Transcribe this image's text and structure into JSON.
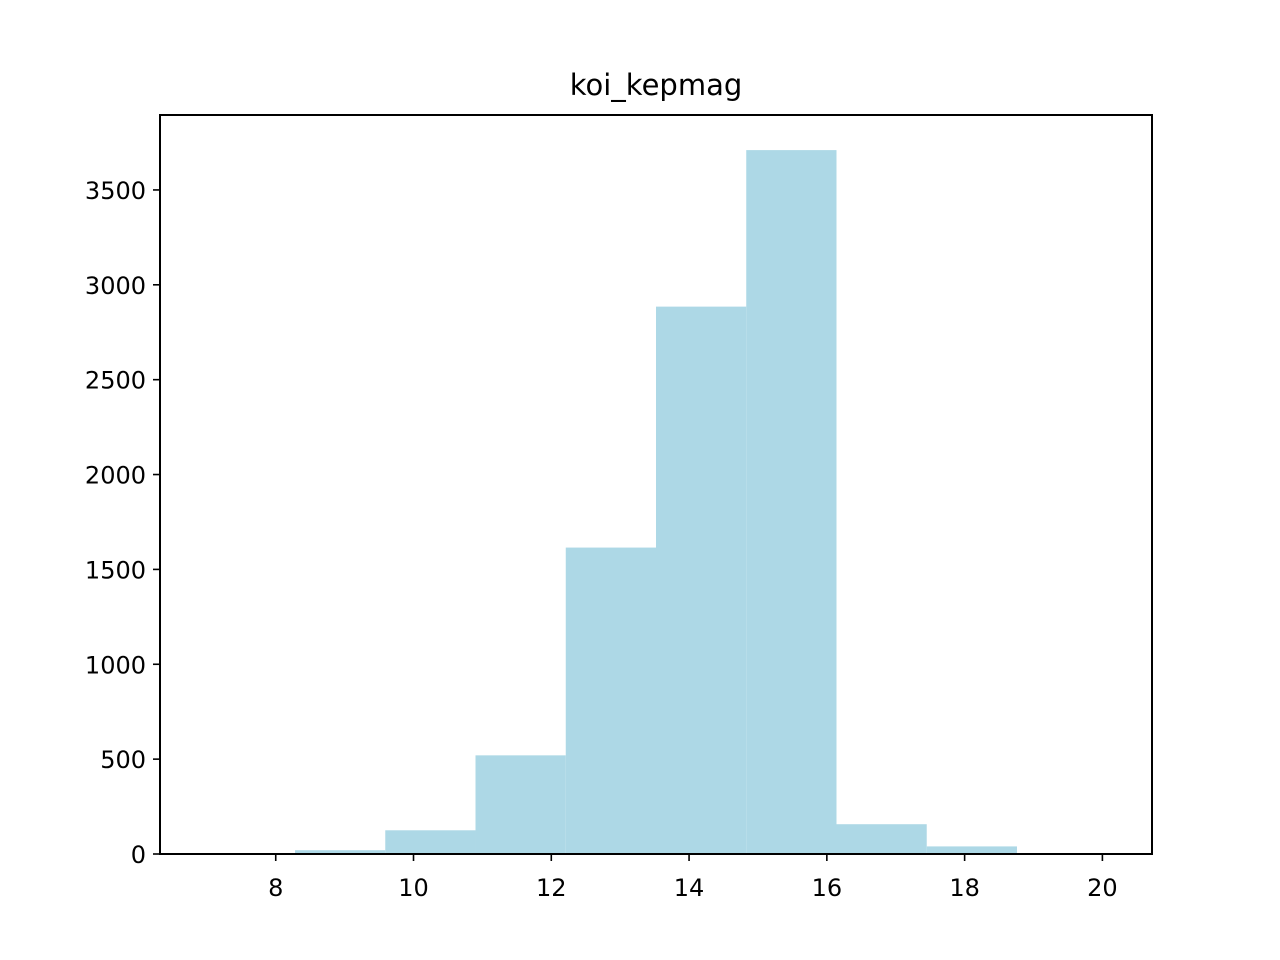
{
  "chart_data": {
    "type": "bar",
    "title": "koi_kepmag",
    "xlabel": "",
    "ylabel": "",
    "bins": [
      {
        "x0": 6.97,
        "x1": 8.28,
        "count": 4
      },
      {
        "x0": 8.28,
        "x1": 9.59,
        "count": 20
      },
      {
        "x0": 9.59,
        "x1": 10.9,
        "count": 125
      },
      {
        "x0": 10.9,
        "x1": 12.21,
        "count": 520
      },
      {
        "x0": 12.21,
        "x1": 13.52,
        "count": 1615
      },
      {
        "x0": 13.52,
        "x1": 14.83,
        "count": 2885
      },
      {
        "x0": 14.83,
        "x1": 16.14,
        "count": 3710
      },
      {
        "x0": 16.14,
        "x1": 17.45,
        "count": 157
      },
      {
        "x0": 17.45,
        "x1": 18.76,
        "count": 40
      },
      {
        "x0": 18.76,
        "x1": 20.07,
        "count": 2
      }
    ],
    "xlim": [
      6.32,
      20.72
    ],
    "ylim": [
      0,
      3895
    ],
    "xticks": [
      "8",
      "10",
      "12",
      "14",
      "16",
      "18",
      "20"
    ],
    "yticks": [
      "0",
      "500",
      "1000",
      "1500",
      "2000",
      "2500",
      "3000",
      "3500"
    ],
    "grid": false,
    "legend": "none",
    "bar_color": "#add8e6",
    "axis_color": "#000000"
  }
}
